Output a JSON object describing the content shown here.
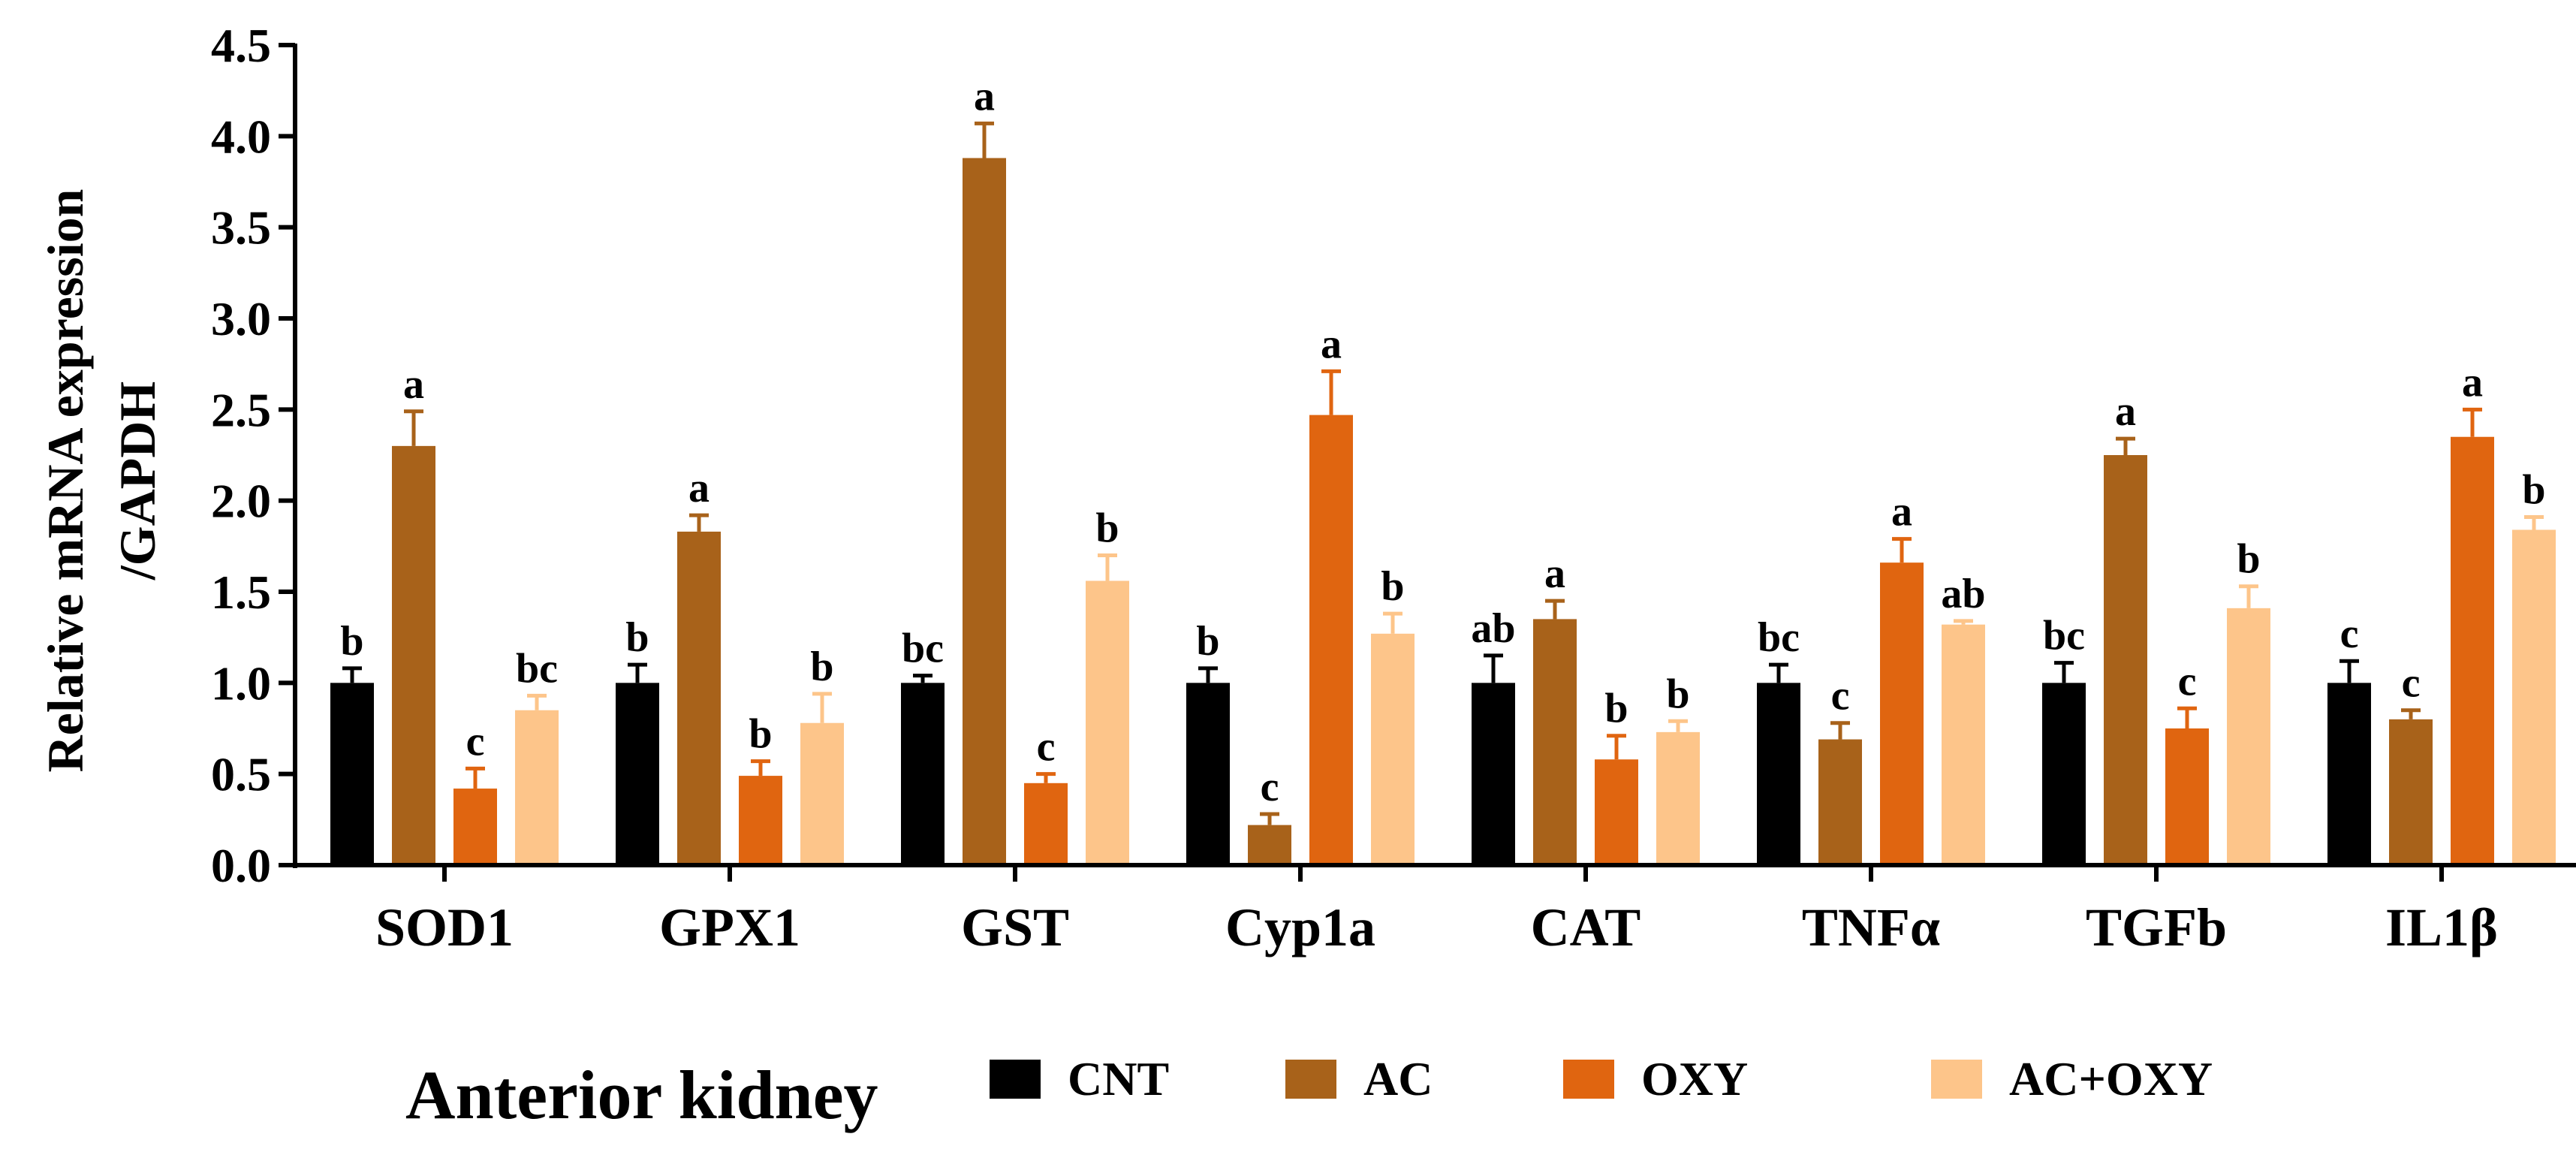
{
  "chart_data": {
    "type": "bar",
    "title": "Anterior kidney",
    "ylabel_line1": "Relative mRNA expression",
    "ylabel_line2": "/GAPDH",
    "xlabel": "",
    "ylim": [
      0,
      4.5
    ],
    "yticks": [
      "0.0",
      "0.5",
      "1.0",
      "1.5",
      "2.0",
      "2.5",
      "3.0",
      "3.5",
      "4.0",
      "4.5"
    ],
    "categories": [
      "SOD1",
      "GPX1",
      "GST",
      "Cyp1a",
      "CAT",
      "TNFα",
      "TGFb",
      "IL1β"
    ],
    "series": [
      {
        "name": "CNT",
        "color": "#000000",
        "values": [
          1.0,
          1.0,
          1.0,
          1.0,
          1.0,
          1.0,
          1.0,
          1.0
        ],
        "errors": [
          0.08,
          0.1,
          0.04,
          0.08,
          0.15,
          0.1,
          0.11,
          0.12
        ],
        "letters": [
          "b",
          "b",
          "bc",
          "b",
          "ab",
          "bc",
          "bc",
          "c"
        ]
      },
      {
        "name": "AC",
        "color": "#A8621A",
        "values": [
          2.3,
          1.83,
          3.88,
          0.22,
          1.35,
          0.69,
          2.25,
          0.8
        ],
        "errors": [
          0.19,
          0.09,
          0.19,
          0.06,
          0.1,
          0.09,
          0.09,
          0.05
        ],
        "letters": [
          "a",
          "a",
          "a",
          "c",
          "a",
          "c",
          "a",
          "c"
        ]
      },
      {
        "name": "OXY",
        "color": "#E06510",
        "values": [
          0.42,
          0.49,
          0.45,
          2.47,
          0.58,
          1.66,
          0.75,
          2.35
        ],
        "errors": [
          0.11,
          0.08,
          0.05,
          0.24,
          0.13,
          0.13,
          0.11,
          0.15
        ],
        "letters": [
          "c",
          "b",
          "c",
          "a",
          "b",
          "a",
          "c",
          "a"
        ]
      },
      {
        "name": "AC+OXY",
        "color": "#FDC58A",
        "values": [
          0.85,
          0.78,
          1.56,
          1.27,
          0.73,
          1.32,
          1.41,
          1.84
        ],
        "errors": [
          0.08,
          0.16,
          0.14,
          0.11,
          0.06,
          0.02,
          0.12,
          0.07
        ],
        "letters": [
          "bc",
          "b",
          "b",
          "b",
          "b",
          "ab",
          "b",
          "b"
        ]
      }
    ],
    "legend_position": "bottom"
  }
}
